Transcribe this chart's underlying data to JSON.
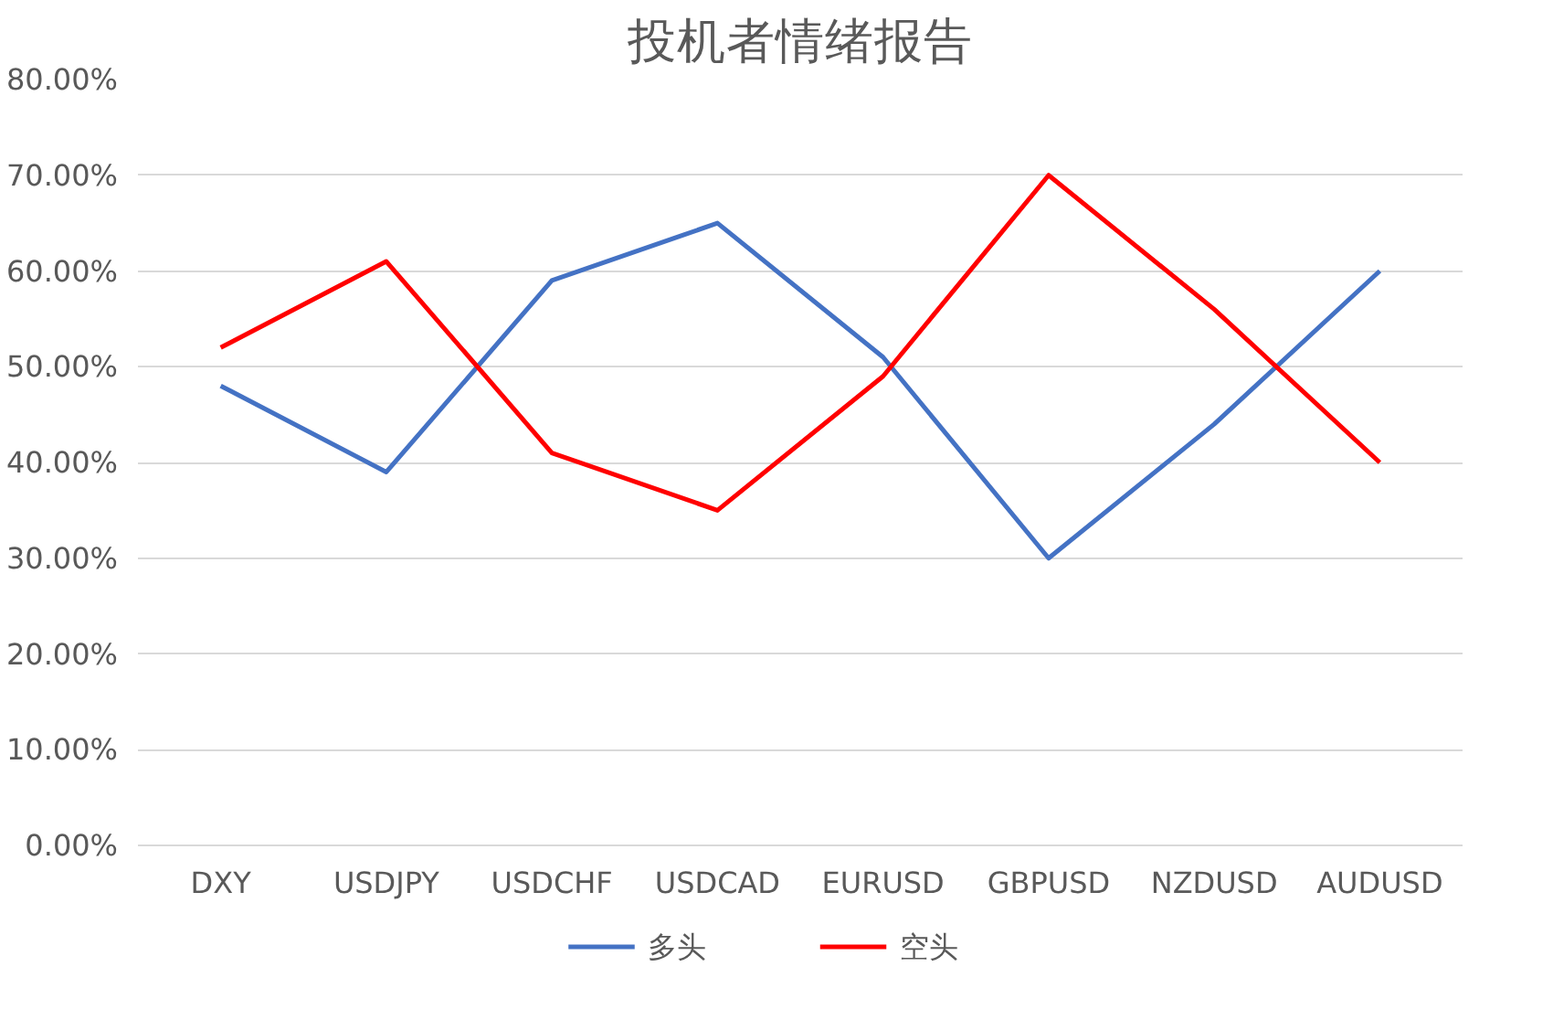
{
  "chart_data": {
    "type": "line",
    "title": "投机者情绪报告",
    "categories": [
      "DXY",
      "USDJPY",
      "USDCHF",
      "USDCAD",
      "EURUSD",
      "GBPUSD",
      "NZDUSD",
      "AUDUSD"
    ],
    "series": [
      {
        "name": "多头",
        "color": "#4472c4",
        "values": [
          48,
          39,
          59,
          65,
          51,
          30,
          44,
          60
        ]
      },
      {
        "name": "空头",
        "color": "#ff0000",
        "values": [
          52,
          61,
          41,
          35,
          49,
          70,
          56,
          40
        ]
      }
    ],
    "ylim": [
      0,
      80
    ],
    "yticks": [
      {
        "value": 0,
        "label": "0.00%"
      },
      {
        "value": 10,
        "label": "10.00%"
      },
      {
        "value": 20,
        "label": "20.00%"
      },
      {
        "value": 30,
        "label": "30.00%"
      },
      {
        "value": 40,
        "label": "40.00%"
      },
      {
        "value": 50,
        "label": "50.00%"
      },
      {
        "value": 60,
        "label": "60.00%"
      },
      {
        "value": 70,
        "label": "70.00%"
      },
      {
        "value": 80,
        "label": "80.00%"
      }
    ],
    "grid": "y",
    "legend": "bottom",
    "marker": "none",
    "line_style": "solid"
  }
}
